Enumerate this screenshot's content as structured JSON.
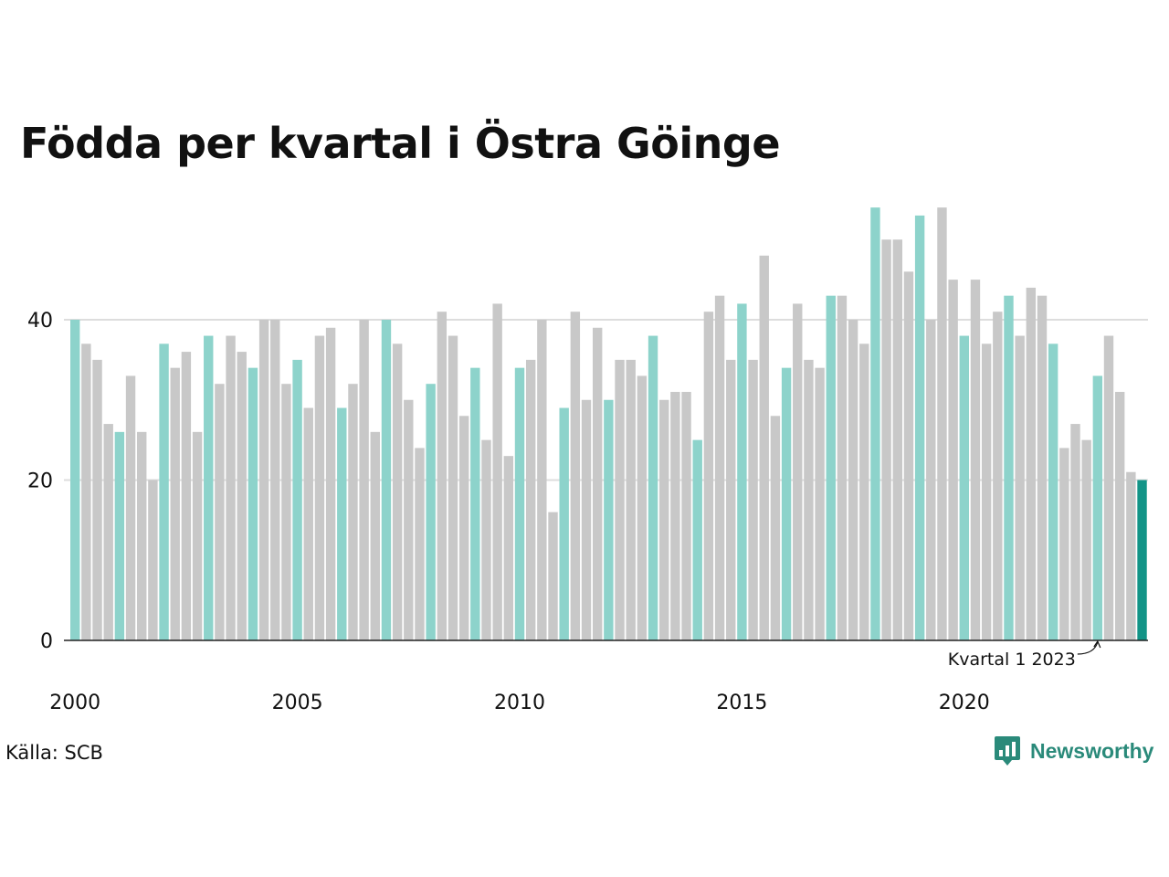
{
  "title": "Födda per kvartal i Östra Göinge",
  "source": "Källa: SCB",
  "brand": {
    "name": "Newsworthy",
    "icon": "newsworthy-logo-icon",
    "color": "#2a8a7a"
  },
  "colors": {
    "highlight_quarter": "#8dd3cb",
    "other_quarter": "#c8c8c8",
    "latest": "#139487",
    "grid": "#dddddd",
    "axis": "#222222"
  },
  "chart_data": {
    "type": "bar",
    "title": "Födda per kvartal i Östra Göinge",
    "xlabel": "",
    "ylabel": "",
    "ylim": [
      0,
      55
    ],
    "yticks": [
      0,
      20,
      40
    ],
    "xticks": [
      "2000",
      "2005",
      "2010",
      "2015",
      "2020"
    ],
    "grid": true,
    "annotation": {
      "text": "Kvartal 1 2023",
      "target_category": "2023 K1"
    },
    "categories": [
      "2000 K1",
      "2000 K2",
      "2000 K3",
      "2000 K4",
      "2001 K1",
      "2001 K2",
      "2001 K3",
      "2001 K4",
      "2002 K1",
      "2002 K2",
      "2002 K3",
      "2002 K4",
      "2003 K1",
      "2003 K2",
      "2003 K3",
      "2003 K4",
      "2004 K1",
      "2004 K2",
      "2004 K3",
      "2004 K4",
      "2005 K1",
      "2005 K2",
      "2005 K3",
      "2005 K4",
      "2006 K1",
      "2006 K2",
      "2006 K3",
      "2006 K4",
      "2007 K1",
      "2007 K2",
      "2007 K3",
      "2007 K4",
      "2008 K1",
      "2008 K2",
      "2008 K3",
      "2008 K4",
      "2009 K1",
      "2009 K2",
      "2009 K3",
      "2009 K4",
      "2010 K1",
      "2010 K2",
      "2010 K3",
      "2010 K4",
      "2011 K1",
      "2011 K2",
      "2011 K3",
      "2011 K4",
      "2012 K1",
      "2012 K2",
      "2012 K3",
      "2012 K4",
      "2013 K1",
      "2013 K2",
      "2013 K3",
      "2013 K4",
      "2014 K1",
      "2014 K2",
      "2014 K3",
      "2014 K4",
      "2015 K1",
      "2015 K2",
      "2015 K3",
      "2015 K4",
      "2016 K1",
      "2016 K2",
      "2016 K3",
      "2016 K4",
      "2017 K1",
      "2017 K2",
      "2017 K3",
      "2017 K4",
      "2018 K1",
      "2018 K2",
      "2018 K3",
      "2018 K4",
      "2019 K1",
      "2019 K2",
      "2019 K3",
      "2019 K4",
      "2020 K1",
      "2020 K2",
      "2020 K3",
      "2020 K4",
      "2021 K1",
      "2021 K2",
      "2021 K3",
      "2021 K4",
      "2022 K1",
      "2022 K2",
      "2022 K3",
      "2022 K4",
      "2023 K1",
      "2023 K2",
      "2023 K3",
      "2023 K4",
      "2024 K1"
    ],
    "values": [
      40,
      37,
      35,
      27,
      26,
      33,
      26,
      20,
      37,
      34,
      36,
      26,
      38,
      32,
      38,
      36,
      34,
      40,
      40,
      32,
      35,
      29,
      38,
      39,
      29,
      32,
      40,
      26,
      40,
      37,
      30,
      24,
      32,
      41,
      38,
      28,
      34,
      25,
      42,
      23,
      34,
      35,
      40,
      16,
      29,
      41,
      30,
      39,
      30,
      35,
      35,
      33,
      38,
      30,
      31,
      31,
      25,
      41,
      43,
      35,
      42,
      35,
      48,
      28,
      34,
      42,
      35,
      34,
      43,
      43,
      40,
      37,
      54,
      50,
      50,
      46,
      53,
      40,
      54,
      45,
      38,
      45,
      37,
      41,
      43,
      38,
      44,
      43,
      37,
      24,
      27,
      25,
      33,
      38,
      31,
      21,
      20
    ]
  }
}
